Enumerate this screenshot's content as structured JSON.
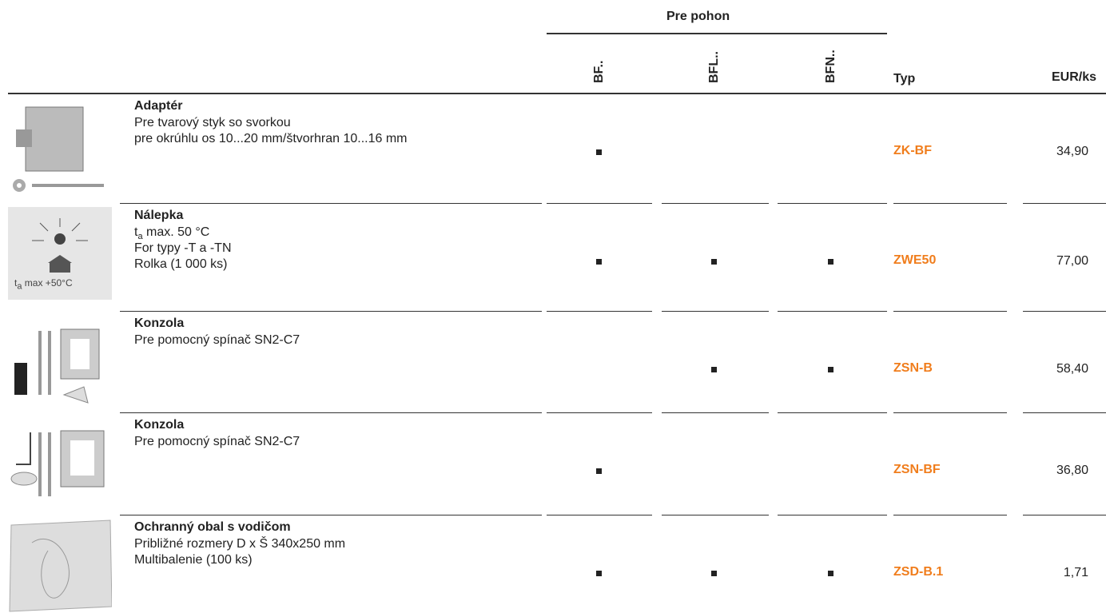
{
  "header": {
    "group": "Pre pohon",
    "columns": [
      "BF..",
      "BFL..",
      "BFN.."
    ],
    "type": "Typ",
    "price": "EUR/ks"
  },
  "rows": [
    {
      "title": "Adaptér",
      "lines": [
        "Pre tvarový styk so svorkou",
        "pre okrúhlu os 10...20 mm/štvorhran 10...16 mm"
      ],
      "drives": [
        true,
        false,
        false
      ],
      "type": "ZK-BF",
      "price": "34,90"
    },
    {
      "title": "Nálepka",
      "image_text": {
        "text": "t",
        "sub": "a",
        "after": " max +50°C"
      },
      "lines": [
        {
          "text": "t",
          "sub": "a",
          "after": " max. 50 °C"
        },
        "For typy -T a -TN",
        "Rolka (1 000 ks)"
      ],
      "drives": [
        true,
        true,
        true
      ],
      "type": "ZWE50",
      "price": "77,00"
    },
    {
      "title": "Konzola",
      "lines": [
        "Pre pomocný spínač SN2-C7"
      ],
      "drives": [
        false,
        true,
        true
      ],
      "type": "ZSN-B",
      "price": "58,40"
    },
    {
      "title": "Konzola",
      "lines": [
        "Pre pomocný spínač SN2-C7"
      ],
      "drives": [
        true,
        false,
        false
      ],
      "type": "ZSN-BF",
      "price": "36,80"
    },
    {
      "title": "Ochranný obal s vodičom",
      "lines": [
        "Približné rozmery D x Š 340x250 mm",
        "Multibalenie (100 ks)"
      ],
      "drives": [
        true,
        true,
        true
      ],
      "type": "ZSD-B.1",
      "price": "1,71"
    }
  ]
}
